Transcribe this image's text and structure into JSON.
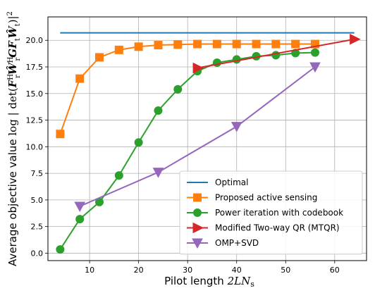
{
  "chart_data": {
    "type": "line",
    "xlabel": "Pilot length 2LN_s",
    "ylabel": "Average objective value log|det(F_r^H W_r^H G F_t W_t)|^2",
    "xlim": [
      1.5,
      66.5
    ],
    "ylim": [
      -0.7,
      22.2
    ],
    "x_ticks": [
      "10",
      "20",
      "30",
      "40",
      "50",
      "60"
    ],
    "x_tick_values": [
      10,
      20,
      30,
      40,
      50,
      60
    ],
    "y_ticks": [
      "0.0",
      "2.5",
      "5.0",
      "7.5",
      "10.0",
      "12.5",
      "15.0",
      "17.5",
      "20.0"
    ],
    "y_tick_values": [
      0.0,
      2.5,
      5.0,
      7.5,
      10.0,
      12.5,
      15.0,
      17.5,
      20.0
    ],
    "grid": true,
    "legend_position": "bottom-right",
    "series": [
      {
        "name": "Optimal",
        "color": "#1f77b4",
        "marker": "none",
        "x": [
          4,
          64
        ],
        "y": [
          20.7,
          20.7
        ]
      },
      {
        "name": "Proposed active sensing",
        "color": "#ff7f0e",
        "marker": "square",
        "x": [
          4,
          8,
          12,
          16,
          20,
          24,
          28,
          32,
          36,
          40,
          44,
          48,
          52,
          56
        ],
        "y": [
          11.2,
          16.4,
          18.4,
          19.1,
          19.4,
          19.55,
          19.6,
          19.65,
          19.65,
          19.65,
          19.65,
          19.65,
          19.65,
          19.65
        ]
      },
      {
        "name": "Power iteration with codebook",
        "color": "#2ca02c",
        "marker": "circle",
        "x": [
          4,
          8,
          12,
          16,
          20,
          24,
          28,
          32,
          36,
          40,
          44,
          48,
          52,
          56
        ],
        "y": [
          0.35,
          3.2,
          4.8,
          7.3,
          10.4,
          13.4,
          15.4,
          17.1,
          17.9,
          18.2,
          18.5,
          18.6,
          18.8,
          18.85
        ]
      },
      {
        "name": "Modified Two-way QR (MTQR)",
        "color": "#d62728",
        "marker": "triangle-right",
        "x": [
          32,
          64
        ],
        "y": [
          17.4,
          20.1
        ]
      },
      {
        "name": "OMP+SVD",
        "color": "#9467bd",
        "marker": "triangle-down",
        "x": [
          8,
          24,
          40,
          56
        ],
        "y": [
          4.4,
          7.6,
          11.9,
          17.5
        ]
      }
    ]
  }
}
